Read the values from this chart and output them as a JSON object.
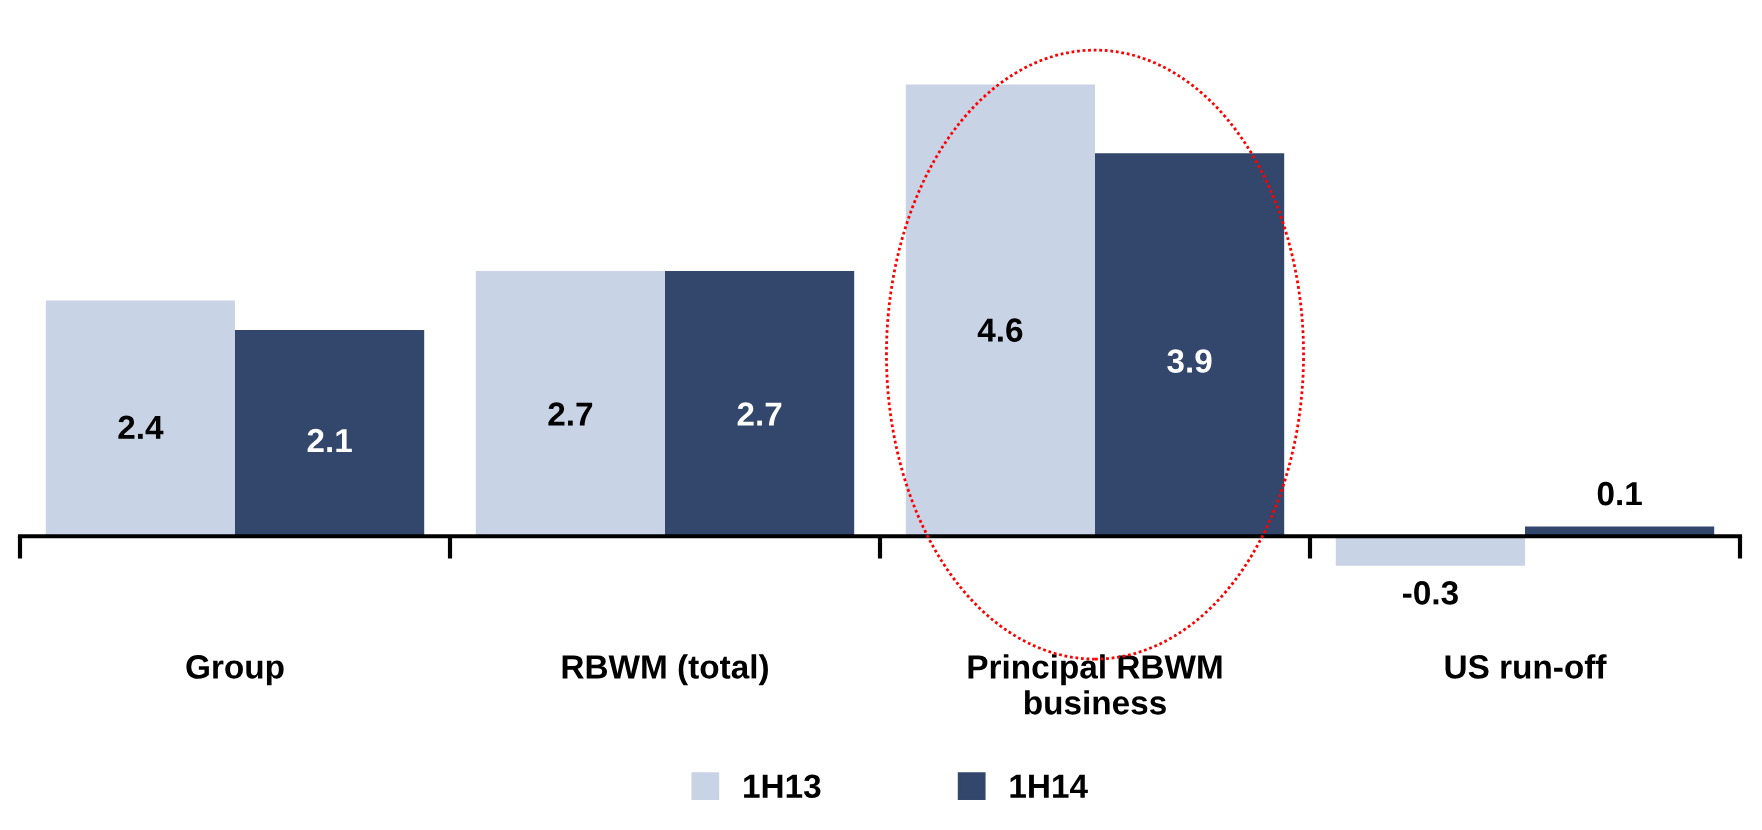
{
  "chart_data": {
    "type": "bar",
    "categories": [
      "Group",
      "RBWM (total)",
      "Principal RBWM business",
      "US run-off"
    ],
    "series": [
      {
        "name": "1H13",
        "color": "#c9d3e6",
        "values": [
          2.4,
          2.7,
          4.6,
          -0.3
        ]
      },
      {
        "name": "1H14",
        "color": "#33466b",
        "values": [
          2.1,
          2.7,
          3.9,
          0.1
        ]
      }
    ],
    "data_labels": true,
    "legend": "bottom",
    "grid": false
  }
}
